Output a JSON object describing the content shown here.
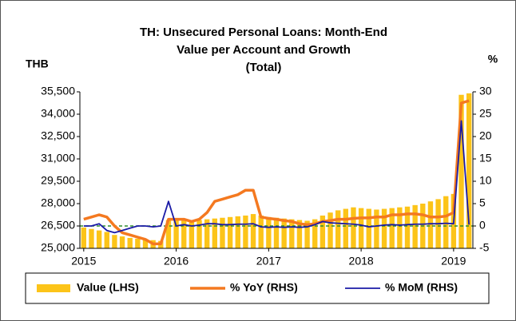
{
  "chart_data": {
    "type": "bar-line",
    "title": [
      "TH: Unsecured Personal Loans: Month-End",
      "Value per Account and Growth",
      "(Total)"
    ],
    "ylabel": "THB",
    "y2label": "%",
    "categories": [
      "2015",
      null,
      null,
      null,
      null,
      null,
      null,
      null,
      null,
      null,
      null,
      null,
      "2016",
      null,
      null,
      null,
      null,
      null,
      null,
      null,
      null,
      null,
      null,
      null,
      "2017",
      null,
      null,
      null,
      null,
      null,
      null,
      null,
      null,
      null,
      null,
      null,
      "2018",
      null,
      null,
      null,
      null,
      null,
      null,
      null,
      null,
      null,
      null,
      null,
      "2019",
      null,
      null
    ],
    "series": [
      {
        "name": "Value (LHS)",
        "type": "bar",
        "color": "#fcc419",
        "axis": "y",
        "values": [
          26400,
          26300,
          26200,
          26100,
          25900,
          25800,
          25700,
          25650,
          25600,
          25550,
          25500,
          26900,
          26900,
          26900,
          26850,
          26900,
          26950,
          27000,
          27050,
          27100,
          27150,
          27200,
          27300,
          27200,
          27100,
          27050,
          27000,
          26950,
          26900,
          26850,
          26950,
          27200,
          27400,
          27550,
          27650,
          27750,
          27700,
          27650,
          27600,
          27650,
          27700,
          27750,
          27800,
          27900,
          28000,
          28150,
          28300,
          28500,
          28650,
          35300,
          35400
        ]
      },
      {
        "name": "% YoY (RHS)",
        "type": "line",
        "color": "#f47920",
        "axis": "y2",
        "values": [
          1.5,
          2,
          2.5,
          2,
          0,
          -1.5,
          -2,
          -2.5,
          -3,
          -4,
          -4,
          1.5,
          1.5,
          1.5,
          1,
          1.5,
          3,
          5.5,
          6,
          6.5,
          7,
          8,
          8,
          2,
          1.7,
          1.5,
          1.2,
          1,
          0.5,
          0.3,
          0.5,
          1,
          1.2,
          1.5,
          1.5,
          1.7,
          1.8,
          1.8,
          2,
          2,
          2.5,
          2.5,
          2.7,
          2.7,
          2.5,
          2,
          2,
          2.2,
          3,
          27.5,
          28
        ]
      },
      {
        "name": "% MoM (RHS)",
        "type": "line",
        "color": "#1a1aa6",
        "axis": "y2",
        "values": [
          0,
          0,
          0.5,
          -1,
          -1.5,
          -1,
          -0.5,
          0,
          0,
          -0.2,
          0,
          5.5,
          0,
          0.3,
          0,
          0.2,
          0.5,
          0.5,
          0.3,
          0.3,
          0.4,
          0.4,
          0.5,
          -0.2,
          -0.3,
          -0.2,
          -0.3,
          -0.2,
          -0.3,
          -0.2,
          0.3,
          1,
          0.7,
          0.6,
          0.5,
          0.4,
          0.2,
          -0.2,
          0,
          0.2,
          0.3,
          0.2,
          0.3,
          0.4,
          0.4,
          0.5,
          0.5,
          0.6,
          0.5,
          23.5,
          0.3
        ]
      }
    ],
    "ylim": [
      25000,
      35500
    ],
    "yticks": [
      {
        "value": 25000,
        "label": "25,000"
      },
      {
        "value": 26500,
        "label": "26,500"
      },
      {
        "value": 28000,
        "label": "28,000"
      },
      {
        "value": 29500,
        "label": "29,500"
      },
      {
        "value": 31000,
        "label": "31,000"
      },
      {
        "value": 32500,
        "label": "32,500"
      },
      {
        "value": 34000,
        "label": "34,000"
      },
      {
        "value": 35500,
        "label": "35,500"
      }
    ],
    "y2lim": [
      -5,
      30
    ],
    "y2ticks": [
      -5,
      0,
      5,
      10,
      15,
      20,
      25,
      30
    ],
    "zero_line_color": "#2e8b2e",
    "legend": "bottom"
  }
}
